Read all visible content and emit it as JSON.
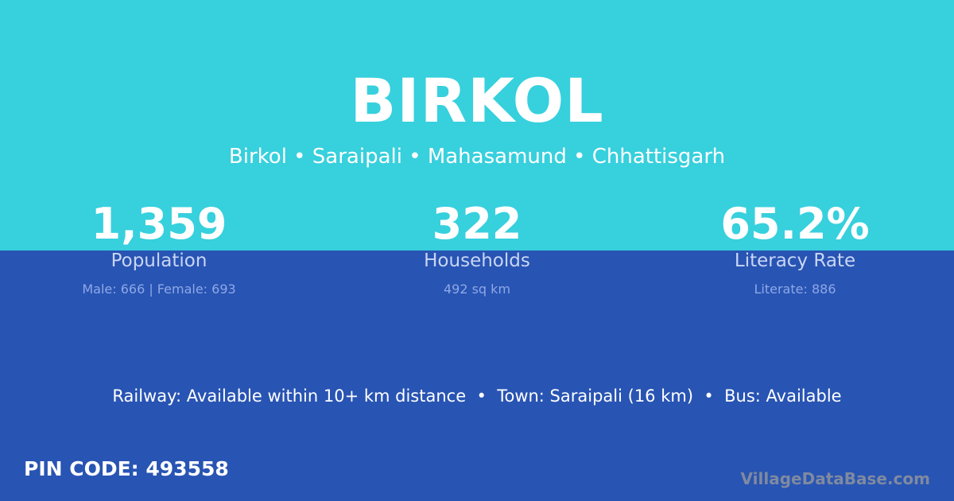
{
  "title": "BIRKOL",
  "breadcrumb": "Birkol • Saraipali • Mahasamund • Chhattisgarh",
  "stats": [
    {
      "value": "1,359",
      "label": "Population",
      "sub": "Male: 666 | Female: 693"
    },
    {
      "value": "322",
      "label": "Households",
      "sub": "492 sq km"
    },
    {
      "value": "65.2%",
      "label": "Literacy Rate",
      "sub": "Literate: 886"
    }
  ],
  "info": "Railway: Available within 10+ km distance  •  Town: Saraipali (16 km)  •  Bus: Available",
  "pin": "PIN CODE: 493558",
  "brand": "VillageDataBase.com",
  "colors": {
    "top": "#37d0dd",
    "bottom": "#2854b3"
  }
}
